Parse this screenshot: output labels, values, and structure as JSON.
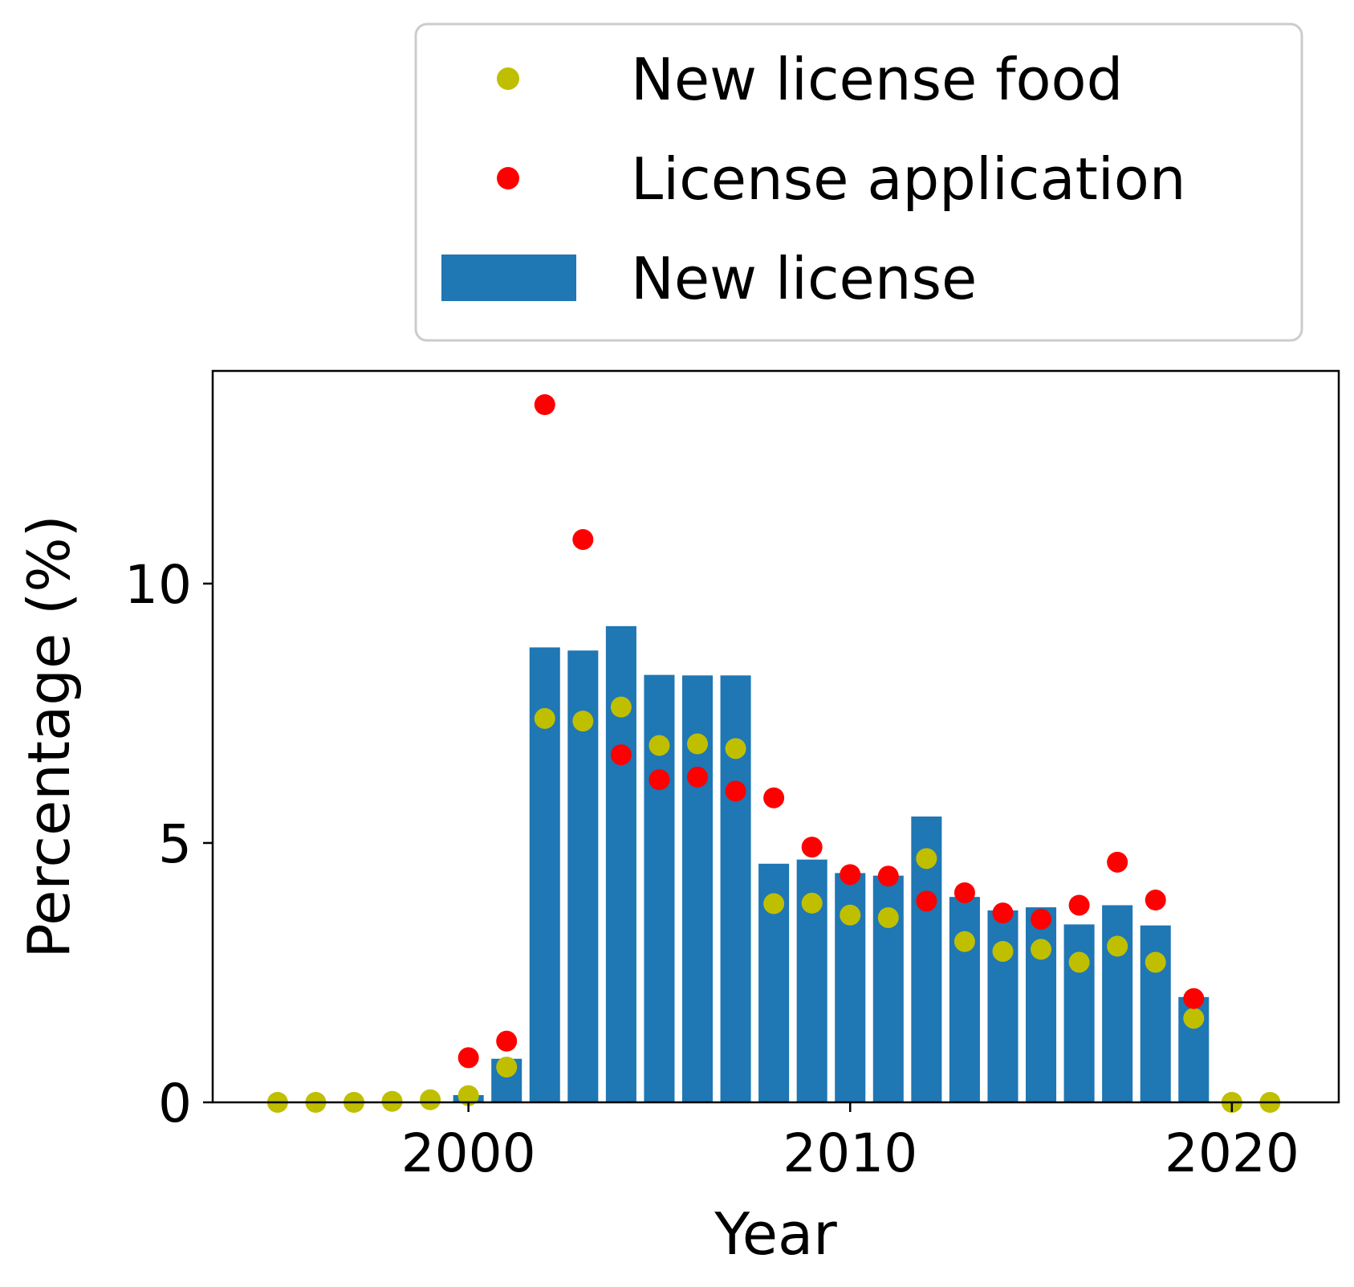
{
  "chart_data": {
    "type": "bar",
    "xlabel": "Year",
    "ylabel": "Percentage (%)",
    "xlim": [
      1993.3,
      2022.8
    ],
    "ylim": [
      0,
      14.1
    ],
    "x_ticks": [
      2000,
      2010,
      2020
    ],
    "y_ticks": [
      0,
      5,
      10
    ],
    "grid": false,
    "legend_position": "top-right, above plot",
    "series": [
      {
        "name": "New license",
        "kind": "bar",
        "color": "#1f77b4",
        "x": [
          2000,
          2001,
          2002,
          2003,
          2004,
          2005,
          2006,
          2007,
          2008,
          2009,
          2010,
          2011,
          2012,
          2013,
          2014,
          2015,
          2016,
          2017,
          2018,
          2019
        ],
        "values": [
          0.14,
          0.84,
          8.77,
          8.71,
          9.18,
          8.24,
          8.23,
          8.23,
          4.6,
          4.68,
          4.42,
          4.37,
          5.51,
          3.96,
          3.7,
          3.76,
          3.43,
          3.8,
          3.41,
          2.03
        ]
      },
      {
        "name": "New license food",
        "kind": "scatter",
        "color": "#bfbf00",
        "x": [
          1995,
          1996,
          1997,
          1998,
          1999,
          2000,
          2001,
          2002,
          2003,
          2004,
          2005,
          2006,
          2007,
          2008,
          2009,
          2010,
          2011,
          2012,
          2013,
          2014,
          2015,
          2016,
          2017,
          2018,
          2019,
          2020,
          2021
        ],
        "values": [
          0,
          0,
          0,
          0.02,
          0.05,
          0.13,
          0.68,
          7.4,
          7.35,
          7.62,
          6.88,
          6.91,
          6.82,
          3.83,
          3.84,
          3.61,
          3.56,
          4.7,
          3.1,
          2.91,
          2.95,
          2.7,
          3.01,
          2.7,
          1.62,
          0,
          0
        ]
      },
      {
        "name": "License application",
        "kind": "scatter",
        "color": "#ff0000",
        "x": [
          2000,
          2001,
          2002,
          2003,
          2004,
          2005,
          2006,
          2007,
          2008,
          2009,
          2010,
          2011,
          2012,
          2013,
          2014,
          2015,
          2016,
          2017,
          2018,
          2019
        ],
        "values": [
          0.86,
          1.18,
          13.45,
          10.85,
          6.7,
          6.22,
          6.27,
          6.0,
          5.87,
          4.92,
          4.39,
          4.36,
          3.88,
          4.04,
          3.65,
          3.53,
          3.8,
          4.63,
          3.9,
          2.0
        ]
      }
    ],
    "legend": [
      {
        "label": "New license food",
        "marker": "dot",
        "color": "#bfbf00"
      },
      {
        "label": "License application",
        "marker": "dot",
        "color": "#ff0000"
      },
      {
        "label": "New license",
        "marker": "bar",
        "color": "#1f77b4"
      }
    ]
  }
}
